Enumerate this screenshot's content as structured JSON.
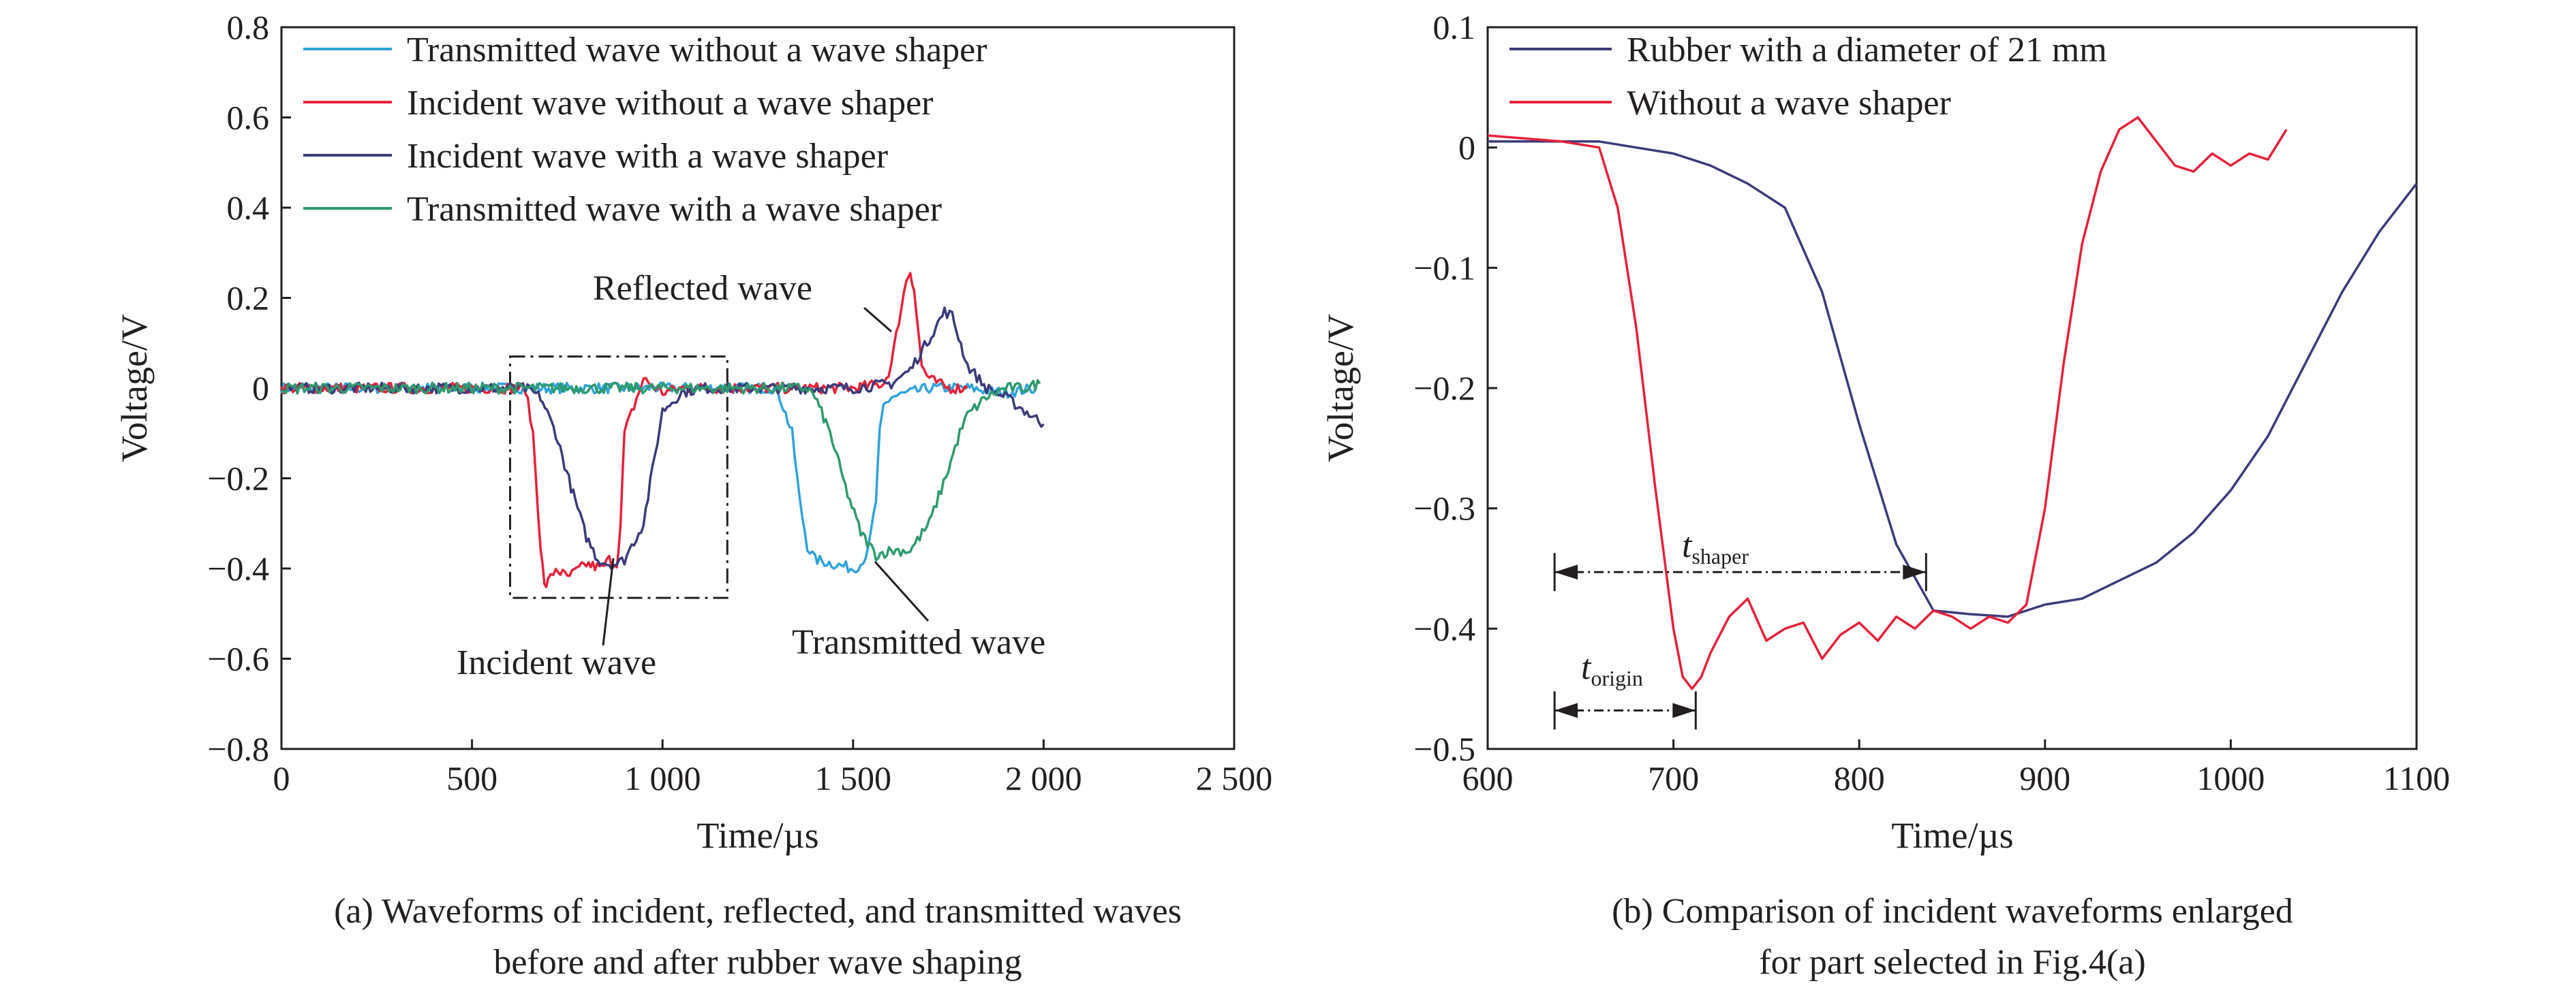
{
  "chart_data": [
    {
      "type": "line",
      "caption_line1": "(a) Waveforms of incident, reflected, and transmitted waves",
      "caption_line2": "before and after rubber wave shaping",
      "xlabel": "Time/µs",
      "ylabel": "Voltage/V",
      "xlim": [
        0,
        2500
      ],
      "ylim": [
        -0.8,
        0.8
      ],
      "xticks": [
        0,
        500,
        1000,
        1500,
        2000,
        2500
      ],
      "xtick_labels": [
        "0",
        "500",
        "1 000",
        "1 500",
        "2 000",
        "2 500"
      ],
      "yticks": [
        -0.8,
        -0.6,
        -0.4,
        -0.2,
        0,
        0.2,
        0.4,
        0.6,
        0.8
      ],
      "ytick_labels": [
        "−0.8",
        "−0.6",
        "−0.4",
        "−0.2",
        "0",
        "0.2",
        "0.4",
        "0.6",
        "0.8"
      ],
      "legend_position": "top-left",
      "series": [
        {
          "name": "Transmitted wave without a wave shaper",
          "color": "#2fa3d8",
          "x": [
            0,
            1300,
            1340,
            1360,
            1380,
            1400,
            1450,
            1500,
            1520,
            1540,
            1560,
            1570,
            1580,
            1600,
            1650,
            1700,
            1800,
            1900,
            1980
          ],
          "y": [
            0,
            0,
            -0.1,
            -0.25,
            -0.35,
            -0.38,
            -0.39,
            -0.4,
            -0.39,
            -0.36,
            -0.25,
            -0.1,
            -0.04,
            -0.02,
            -0.01,
            0,
            0,
            -0.01,
            0
          ]
        },
        {
          "name": "Incident wave without a wave shaper",
          "color": "#e5213a",
          "x": [
            0,
            640,
            660,
            680,
            690,
            700,
            720,
            750,
            800,
            840,
            860,
            880,
            890,
            900,
            950,
            1000,
            1050,
            1100,
            1500,
            1580,
            1600,
            1620,
            1640,
            1650,
            1660,
            1680,
            1700,
            1750,
            1800
          ],
          "y": [
            0,
            0,
            -0.1,
            -0.35,
            -0.44,
            -0.43,
            -0.4,
            -0.42,
            -0.39,
            -0.4,
            -0.38,
            -0.39,
            -0.3,
            -0.1,
            0.02,
            -0.01,
            0,
            0,
            0,
            0.01,
            0.05,
            0.15,
            0.24,
            0.26,
            0.22,
            0.05,
            0.02,
            0,
            0
          ]
        },
        {
          "name": "Incident wave with a wave shaper",
          "color": "#3b3b7a",
          "x": [
            0,
            640,
            680,
            720,
            760,
            800,
            830,
            860,
            880,
            900,
            950,
            980,
            1000,
            1050,
            1100,
            1500,
            1600,
            1650,
            1700,
            1740,
            1760,
            1800,
            1850,
            1900,
            1950,
            2000
          ],
          "y": [
            0,
            0,
            -0.02,
            -0.1,
            -0.22,
            -0.33,
            -0.38,
            -0.39,
            -0.39,
            -0.38,
            -0.3,
            -0.15,
            -0.05,
            -0.01,
            0,
            0,
            0.01,
            0.04,
            0.11,
            0.17,
            0.16,
            0.05,
            0,
            -0.02,
            -0.05,
            -0.08
          ]
        },
        {
          "name": "Transmitted wave with a wave shaper",
          "color": "#2e9a6e",
          "x": [
            0,
            1380,
            1400,
            1440,
            1480,
            1520,
            1560,
            1600,
            1650,
            1700,
            1750,
            1780,
            1800,
            1850,
            1900,
            1950,
            1990
          ],
          "y": [
            0,
            0,
            -0.02,
            -0.1,
            -0.22,
            -0.32,
            -0.37,
            -0.36,
            -0.36,
            -0.3,
            -0.18,
            -0.1,
            -0.06,
            -0.02,
            0,
            0,
            0.01
          ]
        }
      ],
      "annotations": {
        "reflected": "Reflected wave",
        "incident": "Incident wave",
        "transmitted": "Transmitted wave"
      },
      "selection_box": {
        "x": [
          600,
          1170
        ],
        "y": [
          -0.465,
          0.07
        ]
      }
    },
    {
      "type": "line",
      "caption_line1": "(b) Comparison of incident waveforms enlarged",
      "caption_line2": "for part selected in Fig.4(a)",
      "xlabel": "Time/µs",
      "ylabel": "Voltage/V",
      "xlim": [
        600,
        1100
      ],
      "ylim": [
        -0.5,
        0.1
      ],
      "xticks": [
        600,
        700,
        800,
        900,
        1000,
        1100
      ],
      "xtick_labels": [
        "600",
        "700",
        "800",
        "900",
        "1000",
        "1100"
      ],
      "yticks": [
        -0.5,
        -0.4,
        -0.3,
        -0.2,
        -0.1,
        0,
        0.1
      ],
      "ytick_labels": [
        "−0.5",
        "−0.4",
        "−0.3",
        "−0.2",
        "−0.1",
        "0",
        "0.1"
      ],
      "legend_position": "top-left",
      "series": [
        {
          "name": "Rubber with a diameter of 21 mm",
          "color": "#3b3b7a",
          "x": [
            600,
            660,
            680,
            700,
            720,
            740,
            760,
            780,
            800,
            820,
            840,
            860,
            880,
            900,
            920,
            940,
            960,
            980,
            1000,
            1020,
            1040,
            1060,
            1080,
            1100
          ],
          "y": [
            0.005,
            0.005,
            0,
            -0.005,
            -0.015,
            -0.03,
            -0.05,
            -0.12,
            -0.23,
            -0.33,
            -0.385,
            -0.388,
            -0.39,
            -0.38,
            -0.375,
            -0.36,
            -0.345,
            -0.32,
            -0.285,
            -0.24,
            -0.18,
            -0.12,
            -0.07,
            -0.03
          ]
        },
        {
          "name": "Without a wave shaper",
          "color": "#e5213a",
          "x": [
            600,
            640,
            660,
            670,
            680,
            690,
            700,
            705,
            710,
            715,
            720,
            730,
            740,
            750,
            760,
            770,
            780,
            790,
            800,
            810,
            820,
            830,
            840,
            850,
            860,
            870,
            880,
            890,
            900,
            910,
            920,
            930,
            940,
            950,
            960,
            970,
            980,
            990,
            1000,
            1010,
            1020,
            1030
          ],
          "y": [
            0.01,
            0.005,
            0,
            -0.05,
            -0.15,
            -0.28,
            -0.4,
            -0.44,
            -0.45,
            -0.44,
            -0.42,
            -0.39,
            -0.375,
            -0.41,
            -0.4,
            -0.395,
            -0.425,
            -0.405,
            -0.395,
            -0.41,
            -0.39,
            -0.4,
            -0.385,
            -0.39,
            -0.4,
            -0.39,
            -0.395,
            -0.38,
            -0.3,
            -0.18,
            -0.08,
            -0.02,
            0.015,
            0.025,
            0.005,
            -0.015,
            -0.02,
            -0.005,
            -0.015,
            -0.005,
            -0.01,
            0.015
          ]
        }
      ],
      "annotations": {
        "t_shaper_main": "t",
        "t_shaper_sub": "shaper",
        "t_origin_main": "t",
        "t_origin_sub": "origin"
      },
      "t_shaper_arrow": {
        "x": [
          636,
          836
        ],
        "y": -0.353
      },
      "t_origin_arrow": {
        "x": [
          636,
          712
        ],
        "y": -0.468
      }
    }
  ]
}
